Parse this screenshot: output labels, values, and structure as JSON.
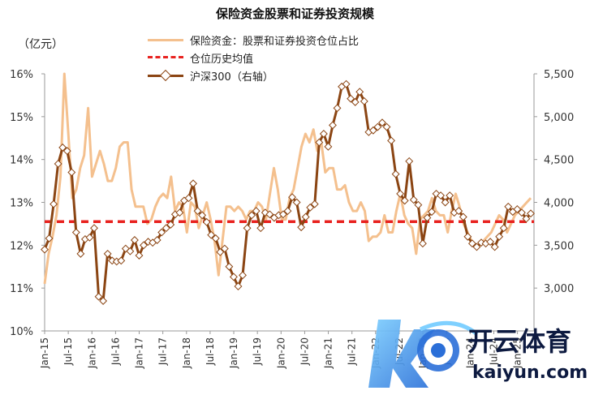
{
  "chart_data": {
    "type": "line",
    "title": "保险资金股票和证券投资规模",
    "y_left_unit": "（亿元）",
    "y_left_ticks": [
      "10%",
      "11%",
      "12%",
      "13%",
      "14%",
      "15%",
      "16%"
    ],
    "y_left_lim": [
      10,
      16
    ],
    "y_right_ticks": [
      "3,000",
      "3,500",
      "4,000",
      "4,500",
      "5,000",
      "5,500"
    ],
    "y_right_lim": [
      2500,
      5500
    ],
    "x_tick_labels": [
      "Jan-15",
      "Jul-15",
      "Jan-16",
      "Jul-16",
      "Jan-17",
      "Jul-17",
      "Jan-18",
      "Jul-18",
      "Jan-19",
      "Jul-19",
      "Jan-20",
      "Jul-20",
      "Jan-21",
      "Jul-21",
      "Jan-22",
      "Jul-22",
      "Jan-23",
      "Jul-23",
      "Jan-24",
      "Jul-24",
      "Jan-25"
    ],
    "legend": [
      {
        "label": "保险资金：股票和证券投资仓位占比",
        "style": "line",
        "color": "#f4c08e"
      },
      {
        "label": "仓位历史均值",
        "style": "dashed",
        "color": "#e8221f"
      },
      {
        "label": "沪深300（右轴）",
        "style": "line-marker",
        "color": "#8b4513"
      }
    ],
    "series": [
      {
        "name": "保险资金：股票和证券投资仓位占比",
        "axis": "left",
        "values": [
          11.1,
          11.8,
          12.2,
          12.7,
          13.6,
          16.0,
          14.6,
          13.1,
          13.3,
          13.8,
          14.1,
          15.2,
          13.6,
          13.9,
          14.2,
          13.9,
          13.5,
          13.5,
          13.8,
          14.3,
          14.4,
          14.4,
          13.3,
          12.9,
          12.9,
          12.9,
          12.5,
          12.6,
          12.9,
          13.1,
          13.2,
          13.1,
          13.6,
          12.8,
          13.0,
          12.9,
          12.3,
          13.0,
          12.9,
          12.4,
          12.7,
          13.0,
          12.6,
          12.1,
          11.3,
          12.1,
          12.9,
          12.9,
          12.8,
          12.9,
          12.8,
          12.6,
          12.8,
          12.8,
          13.0,
          12.9,
          12.6,
          13.2,
          13.8,
          13.3,
          12.6,
          12.6,
          13.1,
          13.3,
          13.8,
          14.3,
          14.6,
          14.4,
          14.7,
          14.2,
          14.4,
          13.7,
          13.8,
          13.8,
          13.3,
          13.3,
          13.4,
          13.0,
          12.8,
          12.8,
          13.0,
          12.8,
          12.1,
          12.2,
          12.2,
          12.3,
          12.7,
          12.3,
          12.3,
          12.8,
          13.2,
          12.7,
          12.5,
          12.4,
          11.8,
          12.6,
          12.7,
          12.8,
          13.1,
          12.8,
          12.7,
          12.7,
          12.3,
          12.8,
          13.2,
          12.9,
          12.5,
          12.3,
          12.1,
          12.0,
          12.0,
          12.1,
          12.2,
          12.3,
          12.5,
          12.7,
          12.6,
          12.3,
          12.5,
          12.7,
          12.8,
          12.9,
          13.0,
          13.1
        ]
      },
      {
        "name": "仓位历史均值",
        "axis": "left",
        "values": [
          12.55
        ]
      },
      {
        "name": "沪深300（右轴）",
        "axis": "right",
        "values": [
          3450,
          3580,
          3980,
          4450,
          4640,
          4600,
          4350,
          3650,
          3400,
          3570,
          3590,
          3700,
          2900,
          2850,
          3400,
          3320,
          3310,
          3320,
          3460,
          3430,
          3560,
          3380,
          3500,
          3540,
          3530,
          3560,
          3650,
          3700,
          3740,
          3860,
          3880,
          4020,
          4050,
          4220,
          3900,
          3850,
          3770,
          3620,
          3580,
          3420,
          3460,
          3250,
          3130,
          3020,
          3150,
          3700,
          3850,
          3900,
          3700,
          3880,
          3860,
          3820,
          3850,
          3860,
          3900,
          4060,
          4000,
          3710,
          3830,
          3940,
          3980,
          4700,
          4800,
          4650,
          4900,
          5100,
          5350,
          5380,
          5210,
          5170,
          5290,
          5180,
          4820,
          4840,
          4880,
          4930,
          4880,
          4720,
          4330,
          4100,
          4020,
          4480,
          4030,
          3970,
          3520,
          3820,
          3890,
          4100,
          4080,
          4000,
          4080,
          3880,
          3900,
          3830,
          3600,
          3520,
          3480,
          3530,
          3520,
          3540,
          3480,
          3600,
          3700,
          3950,
          3890,
          3920,
          3880,
          3810,
          3870
        ]
      }
    ]
  },
  "watermark": {
    "brand_cn": "开云体育",
    "brand_url": "kaiyun.com"
  }
}
